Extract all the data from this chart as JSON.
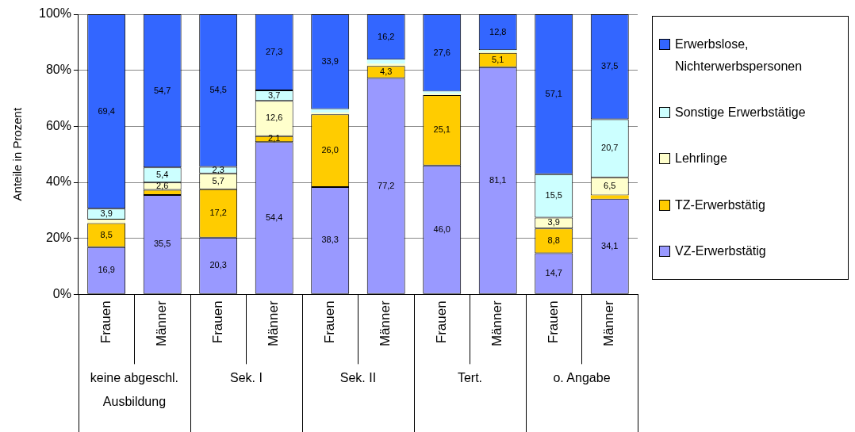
{
  "chart_data": {
    "type": "bar",
    "stacked": true,
    "ylabel": "Anteile in Prozent",
    "categories": [
      "Frauen",
      "Männer",
      "Frauen",
      "Männer",
      "Frauen",
      "Männer",
      "Frauen",
      "Männer",
      "Frauen",
      "Männer"
    ],
    "annotations": [
      "keine abgeschl. Ausbildung",
      "Sek. I",
      "Sek. II",
      "Tert.",
      "o. Angabe"
    ],
    "series": [
      {
        "name": "VZ-Erwerbstätig",
        "color": "#9999ff",
        "values": [
          16.9,
          35.5,
          20.3,
          54.4,
          38.3,
          77.2,
          46.0,
          81.1,
          14.7,
          34.1
        ],
        "value_labels": [
          "16,9",
          "35,5",
          "20,3",
          "54,4",
          "38,3",
          "77,2",
          "46,0",
          "81,1",
          "14,7",
          "34,1"
        ]
      },
      {
        "name": "TZ-Erwerbstätig",
        "color": "#ffcc00",
        "values": [
          8.5,
          1.8,
          17.2,
          2.1,
          26.0,
          4.3,
          25.1,
          5.1,
          8.8,
          1.2
        ],
        "value_labels": [
          "8,5",
          null,
          "17,2",
          "2,1",
          "26,0",
          "4,3",
          "25,1",
          "5,1",
          "8,8",
          null
        ]
      },
      {
        "name": "Lehrlinge",
        "color": "#ffffcc",
        "values": [
          1.3,
          2.6,
          5.7,
          12.6,
          0.6,
          0.8,
          0.5,
          0.5,
          3.9,
          6.5
        ],
        "value_labels": [
          null,
          "2,6",
          "5,7",
          "12,6",
          null,
          null,
          null,
          null,
          "3,9",
          "6,5"
        ]
      },
      {
        "name": "Sonstige Erwerbstätige",
        "color": "#ccffff",
        "values": [
          3.9,
          5.4,
          2.3,
          3.7,
          1.2,
          1.5,
          0.8,
          0.5,
          15.5,
          20.7
        ],
        "value_labels": [
          "3,9",
          "5,4",
          "2,3",
          "3,7",
          null,
          null,
          null,
          null,
          "15,5",
          "20,7"
        ]
      },
      {
        "name": "Erwerbslose, Nichterwerbspersonen",
        "color": "#3366ff",
        "values": [
          69.4,
          54.7,
          54.5,
          27.3,
          33.9,
          16.2,
          27.6,
          12.8,
          57.1,
          37.5
        ],
        "value_labels": [
          "69,4",
          "54,7",
          "54,5",
          "27,3",
          "33,9",
          "16,2",
          "27,6",
          "12,8",
          "57,1",
          "37,5"
        ]
      }
    ],
    "ylim": [
      0,
      100
    ],
    "yticks": [
      {
        "value": 0,
        "label": "0%"
      },
      {
        "value": 20,
        "label": "20%"
      },
      {
        "value": 40,
        "label": "40%"
      },
      {
        "value": 60,
        "label": "60%"
      },
      {
        "value": 80,
        "label": "80%"
      },
      {
        "value": 100,
        "label": "100%"
      }
    ],
    "grid": "y",
    "legend": "right"
  }
}
